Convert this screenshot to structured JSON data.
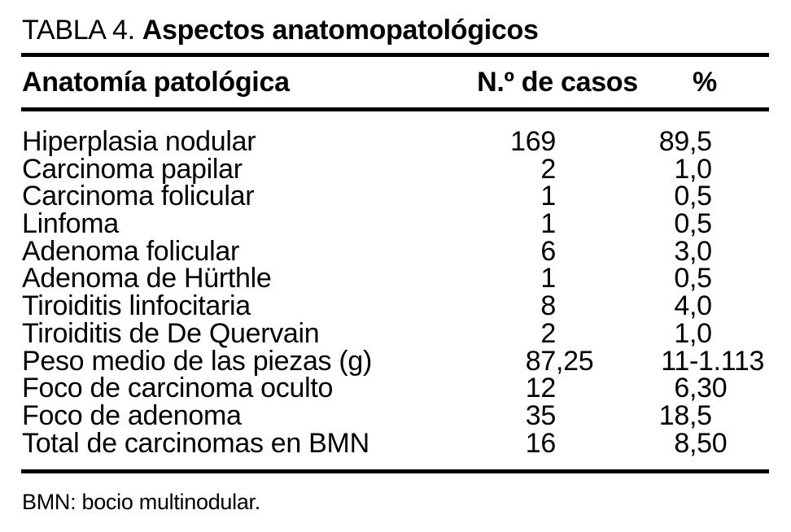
{
  "caption": {
    "label": "TABLA 4.",
    "title": "Aspectos anatomopatológicos"
  },
  "chart_data": {
    "type": "table",
    "columns": [
      "Anatomía patológica",
      "N.º de casos",
      "%"
    ],
    "rows": [
      [
        "Hiperplasia nodular",
        "169",
        "89,5"
      ],
      [
        "Carcinoma papilar",
        "2",
        "1,0"
      ],
      [
        "Carcinoma folicular",
        "1",
        "0,5"
      ],
      [
        "Linfoma",
        "1",
        "0,5"
      ],
      [
        "Adenoma folicular",
        "6",
        "3,0"
      ],
      [
        "Adenoma de Hürthle",
        "1",
        "0,5"
      ],
      [
        "Tiroiditis linfocitaria",
        "8",
        "4,0"
      ],
      [
        "Tiroiditis de De Quervain",
        "2",
        "1,0"
      ],
      [
        "Peso medio de las piezas (g)",
        "87,25",
        "11-1.113"
      ],
      [
        "Foco de carcinoma oculto",
        "12",
        "6,30"
      ],
      [
        "Foco de adenoma",
        "35",
        "18,5"
      ],
      [
        "Total de carcinomas en BMN",
        "16",
        "8,50"
      ]
    ],
    "footnote": "BMN: bocio multinodular."
  },
  "colors": {
    "text": "#000000",
    "rule": "#000000",
    "background": "#ffffff"
  }
}
